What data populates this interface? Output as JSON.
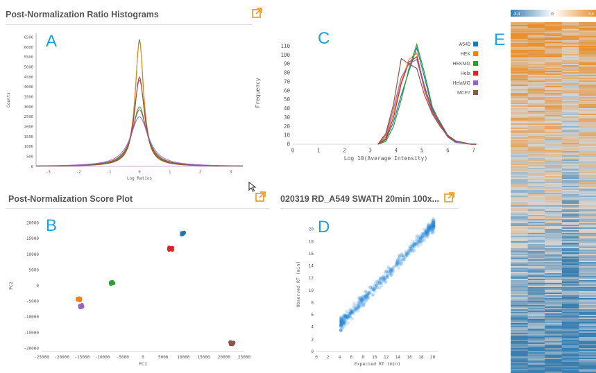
{
  "panels": {
    "ratio_hist": {
      "title": "Post-Normalization Ratio Histograms",
      "letter": "A"
    },
    "score_plot": {
      "title": "Post-Normalization Score Plot",
      "letter": "B"
    },
    "intensity": {
      "letter": "C"
    },
    "rt_plot": {
      "title": "020319 RD_A549 SWATH 20min 100x...",
      "letter": "D"
    },
    "heatmap": {
      "letter": "E"
    }
  },
  "colors": {
    "A549": "#1f77b4",
    "HEK": "#ff7f0e",
    "HEKMG": "#2ca02c",
    "Hela": "#d62728",
    "HelaMG": "#9467bd",
    "MCF7": "#8c564b",
    "accent_icon": "#f0a030",
    "letter": "#1aa3d9"
  },
  "icons": {
    "open_external": "external-link-icon",
    "cursor": "mouse-pointer-icon"
  },
  "chart_data": [
    {
      "id": "ratio_hist",
      "type": "line",
      "title": "",
      "xlabel": "Log Ratios",
      "ylabel": "Counts",
      "xlim": [
        -3.4,
        3.4
      ],
      "ylim": [
        0,
        6700
      ],
      "x_ticks": [
        -3,
        -2,
        -1,
        0,
        1,
        2,
        3
      ],
      "y_ticks": [
        0,
        500,
        1000,
        1500,
        2000,
        2500,
        3000,
        3500,
        4000,
        4500,
        5000,
        5500,
        6000,
        6500
      ],
      "grid": false,
      "series": [
        {
          "peak": 6400,
          "width": 0.16,
          "color": "#2ca02c"
        },
        {
          "peak": 6300,
          "width": 0.17,
          "color": "#ff7f0e"
        },
        {
          "peak": 4500,
          "width": 0.2,
          "color": "#d62728"
        },
        {
          "peak": 4350,
          "width": 0.22,
          "color": "#8c564b"
        },
        {
          "peak": 3000,
          "width": 0.28,
          "color": "#2ca02c"
        },
        {
          "peak": 2850,
          "width": 0.3,
          "color": "#8c564b"
        },
        {
          "peak": 2500,
          "width": 0.36,
          "color": "#9467bd"
        }
      ]
    },
    {
      "id": "intensity",
      "type": "line",
      "title": "",
      "xlabel": "Log 10(Average Intensity)",
      "ylabel": "Frequency",
      "xlim": [
        0,
        7.2
      ],
      "ylim": [
        0,
        115
      ],
      "x_ticks": [
        0,
        1,
        2,
        3,
        4,
        5,
        6,
        7
      ],
      "y_ticks": [
        0,
        10,
        20,
        30,
        40,
        50,
        60,
        70,
        80,
        90,
        100,
        110
      ],
      "legend_position": "top-right",
      "grid": false,
      "x": [
        3.3,
        3.6,
        3.9,
        4.2,
        4.5,
        4.8,
        5.1,
        5.4,
        5.7,
        6.0,
        6.3,
        6.6,
        6.9,
        7.1
      ],
      "series": [
        {
          "name": "A549",
          "values": [
            0,
            5,
            25,
            55,
            82,
            108,
            75,
            40,
            25,
            10,
            3,
            1,
            0,
            0
          ]
        },
        {
          "name": "HEK",
          "values": [
            0,
            8,
            35,
            70,
            95,
            102,
            60,
            35,
            22,
            8,
            2,
            1,
            0,
            0
          ]
        },
        {
          "name": "HEKMG",
          "values": [
            0,
            3,
            20,
            50,
            85,
            112,
            80,
            42,
            24,
            9,
            3,
            1,
            0,
            0
          ]
        },
        {
          "name": "Hela",
          "values": [
            0,
            6,
            30,
            68,
            92,
            98,
            65,
            38,
            23,
            9,
            2,
            1,
            0,
            0
          ]
        },
        {
          "name": "HelaMG",
          "values": [
            0,
            10,
            40,
            75,
            90,
            95,
            62,
            36,
            21,
            8,
            2,
            1,
            0,
            0
          ]
        },
        {
          "name": "MCF7",
          "values": [
            0,
            12,
            45,
            96,
            90,
            85,
            55,
            34,
            20,
            10,
            4,
            2,
            0,
            0
          ]
        }
      ]
    },
    {
      "id": "score_plot",
      "type": "scatter",
      "title": "",
      "xlabel": "PC1",
      "ylabel": "PC2",
      "xlim": [
        -25000,
        25000
      ],
      "ylim": [
        -21000,
        21000
      ],
      "x_ticks": [
        -25000,
        -20000,
        -15000,
        -10000,
        -5000,
        0,
        5000,
        10000,
        15000,
        20000,
        25000
      ],
      "y_ticks": [
        -20000,
        -15000,
        -10000,
        -5000,
        0,
        5000,
        10000,
        15000,
        20000
      ],
      "grid": false,
      "points": [
        {
          "x": 10000,
          "y": 16600,
          "color": "#1f77b4"
        },
        {
          "x": 6800,
          "y": 11800,
          "color": "#d62728"
        },
        {
          "x": -7500,
          "y": 900,
          "color": "#2ca02c"
        },
        {
          "x": -15900,
          "y": -4300,
          "color": "#ff7f0e"
        },
        {
          "x": -15100,
          "y": -6500,
          "color": "#9467bd"
        },
        {
          "x": 22000,
          "y": -18400,
          "color": "#8c564b"
        }
      ]
    },
    {
      "id": "rt_plot",
      "type": "scatter",
      "title": "",
      "xlabel": "Expected RT (min)",
      "ylabel": "Observed RT (min)",
      "xlim": [
        0,
        21
      ],
      "ylim": [
        0,
        22
      ],
      "x_ticks": [
        0,
        2,
        4,
        6,
        8,
        10,
        12,
        14,
        16,
        18,
        20
      ],
      "y_ticks": [
        0,
        2,
        4,
        6,
        8,
        10,
        12,
        14,
        16,
        18,
        20
      ],
      "grid": false,
      "trend": {
        "x_range": [
          4.2,
          20.2
        ],
        "slope": 1.02,
        "intercept": 0.2,
        "spread": 0.7
      }
    },
    {
      "id": "heatmap",
      "type": "heatmap",
      "color_scale": {
        "min": -3.4,
        "mid": 0,
        "max": 3.4,
        "low_color": "#3a7fb0",
        "high_color": "#e8902e"
      },
      "min_label": "-3.4",
      "mid_label": "0",
      "max_label": "3.4",
      "columns": 5
    }
  ]
}
